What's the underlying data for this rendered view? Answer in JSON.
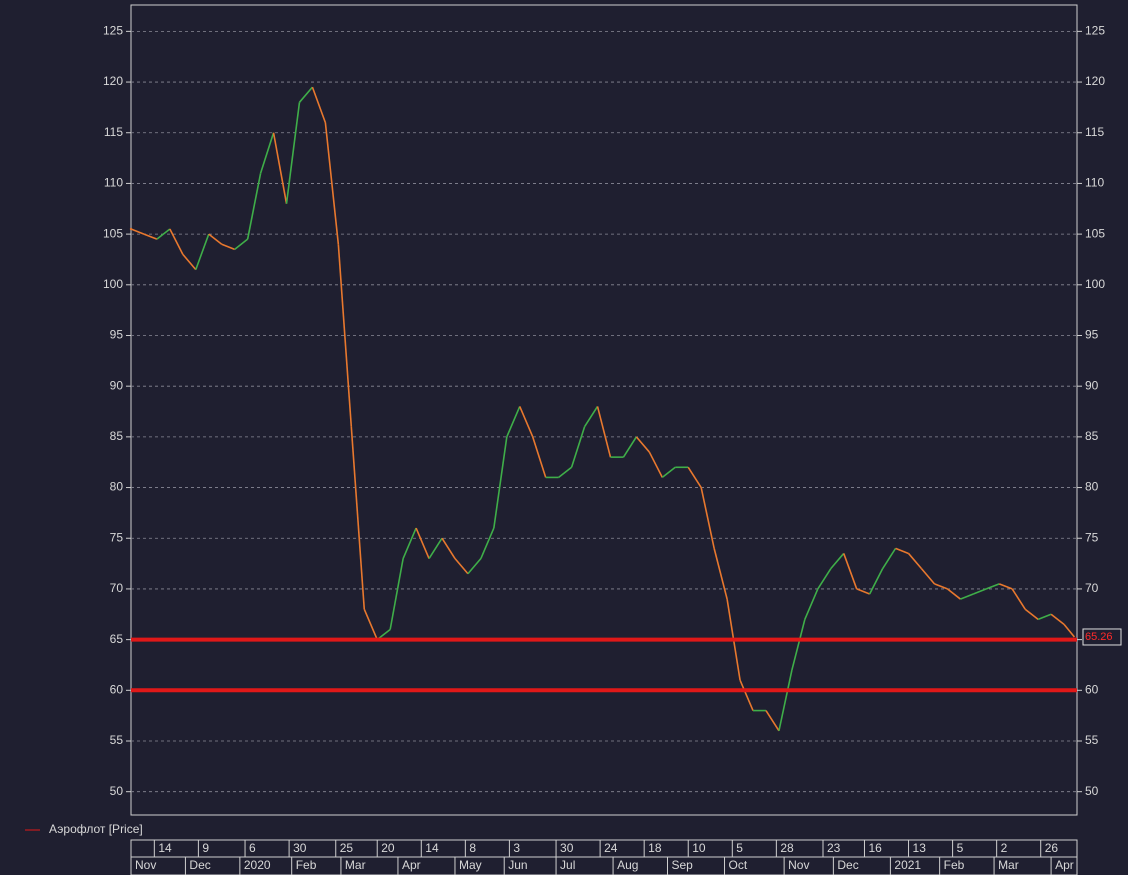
{
  "chart_data": {
    "type": "line",
    "legend": "Аэрофлот [Price]",
    "series": [
      {
        "name": "Аэрофлот [Price]",
        "color": "#e8782e",
        "x": [
          0,
          5,
          10,
          15,
          20,
          25,
          30,
          35,
          40,
          45,
          50,
          55,
          60,
          65,
          70,
          75,
          80,
          85,
          90,
          95,
          100,
          105,
          110,
          115,
          120,
          125,
          130,
          135,
          140,
          145,
          150,
          155,
          160,
          165,
          170,
          175,
          180,
          185,
          190,
          195,
          200,
          205,
          210,
          215,
          220,
          225,
          230,
          235,
          240,
          245,
          250,
          255,
          260,
          265,
          270,
          275,
          280,
          285,
          290,
          295,
          300,
          305,
          310,
          315,
          320,
          325,
          330,
          335,
          340,
          345,
          350,
          355,
          360,
          364
        ],
        "values": [
          105.5,
          105,
          104.5,
          105.5,
          103,
          101.5,
          105,
          104,
          103.5,
          104.5,
          111,
          115,
          108,
          118,
          119.5,
          116,
          104,
          86,
          68,
          65,
          66,
          73,
          76,
          73,
          75,
          73,
          71.5,
          73,
          76,
          85,
          88,
          85,
          81,
          81,
          82,
          86,
          88,
          83,
          83,
          85,
          83.5,
          81,
          82,
          82,
          80,
          74,
          69,
          61,
          58,
          58,
          56,
          62,
          67,
          70,
          72,
          73.5,
          70,
          69.5,
          72,
          74,
          73.5,
          72,
          70.5,
          70,
          69,
          69.5,
          70,
          70.5,
          70,
          68,
          67,
          67.5,
          66.5,
          65.26
        ]
      }
    ],
    "hlines": [
      {
        "value": 65,
        "color": "#e01818"
      },
      {
        "value": 60,
        "color": "#e01818"
      }
    ],
    "last_price": 65.26,
    "xlim": [
      0,
      365
    ],
    "ylim": [
      47.7,
      127.6
    ],
    "yticks": [
      50,
      55,
      60,
      65,
      70,
      75,
      80,
      85,
      90,
      95,
      100,
      105,
      110,
      115,
      120,
      125
    ],
    "xticks_days": [
      {
        "value": 9,
        "label": "14"
      },
      {
        "value": 26,
        "label": "9"
      },
      {
        "value": 44,
        "label": "6"
      },
      {
        "value": 61,
        "label": "30"
      },
      {
        "value": 79,
        "label": "25"
      },
      {
        "value": 95,
        "label": "20"
      },
      {
        "value": 112,
        "label": "14"
      },
      {
        "value": 129,
        "label": "8"
      },
      {
        "value": 146,
        "label": "3"
      },
      {
        "value": 164,
        "label": "30"
      },
      {
        "value": 181,
        "label": "24"
      },
      {
        "value": 198,
        "label": "18"
      },
      {
        "value": 215,
        "label": "10"
      },
      {
        "value": 232,
        "label": "5"
      },
      {
        "value": 249,
        "label": "28"
      },
      {
        "value": 267,
        "label": "23"
      },
      {
        "value": 283,
        "label": "16"
      },
      {
        "value": 300,
        "label": "13"
      },
      {
        "value": 317,
        "label": "5"
      },
      {
        "value": 334,
        "label": "2"
      },
      {
        "value": 351,
        "label": "26"
      }
    ],
    "xticks_months": [
      {
        "value": 0,
        "label": "Nov"
      },
      {
        "value": 21,
        "label": "Dec"
      },
      {
        "value": 42,
        "label": "2020"
      },
      {
        "value": 62,
        "label": "Feb"
      },
      {
        "value": 81,
        "label": "Mar"
      },
      {
        "value": 103,
        "label": "Apr"
      },
      {
        "value": 125,
        "label": "May"
      },
      {
        "value": 144,
        "label": "Jun"
      },
      {
        "value": 164,
        "label": "Jul"
      },
      {
        "value": 186,
        "label": "Aug"
      },
      {
        "value": 207,
        "label": "Sep"
      },
      {
        "value": 229,
        "label": "Oct"
      },
      {
        "value": 252,
        "label": "Nov"
      },
      {
        "value": 271,
        "label": "Dec"
      },
      {
        "value": 293,
        "label": "2021"
      },
      {
        "value": 312,
        "label": "Feb"
      },
      {
        "value": 333,
        "label": "Mar"
      },
      {
        "value": 355,
        "label": "Apr"
      }
    ],
    "grid": true
  }
}
